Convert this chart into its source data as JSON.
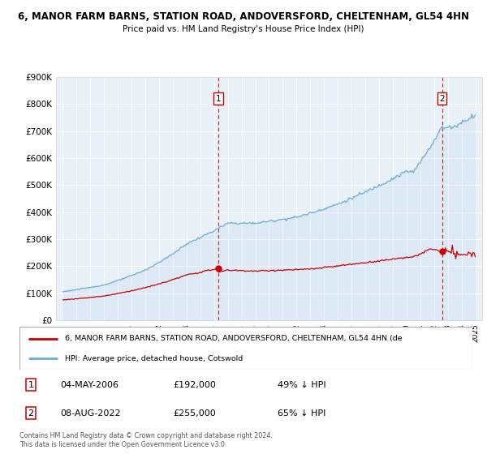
{
  "title_line1": "6, MANOR FARM BARNS, STATION ROAD, ANDOVERSFORD, CHELTENHAM, GL54 4HN",
  "title_line2": "Price paid vs. HM Land Registry's House Price Index (HPI)",
  "ylim": [
    0,
    900000
  ],
  "yticks": [
    0,
    100000,
    200000,
    300000,
    400000,
    500000,
    600000,
    700000,
    800000,
    900000
  ],
  "ytick_labels": [
    "£0",
    "£100K",
    "£200K",
    "£300K",
    "£400K",
    "£500K",
    "£600K",
    "£700K",
    "£800K",
    "£900K"
  ],
  "hpi_color": "#6baed6",
  "hpi_fill_color": "#c6dbef",
  "price_color": "#cc0000",
  "bg_color": "#e8f0f8",
  "marker1_x": 2006.33,
  "marker1_y": 192000,
  "marker2_x": 2022.58,
  "marker2_y": 255000,
  "legend_line1": "6, MANOR FARM BARNS, STATION ROAD, ANDOVERSFORD, CHELTENHAM, GL54 4HN (de",
  "legend_line2": "HPI: Average price, detached house, Cotswold",
  "table_row1_num": "1",
  "table_row1_date": "04-MAY-2006",
  "table_row1_price": "£192,000",
  "table_row1_hpi": "49% ↓ HPI",
  "table_row2_num": "2",
  "table_row2_date": "08-AUG-2022",
  "table_row2_price": "£255,000",
  "table_row2_hpi": "65% ↓ HPI",
  "footnote": "Contains HM Land Registry data © Crown copyright and database right 2024.\nThis data is licensed under the Open Government Licence v3.0.",
  "xmin": 1994.5,
  "xmax": 2025.5
}
